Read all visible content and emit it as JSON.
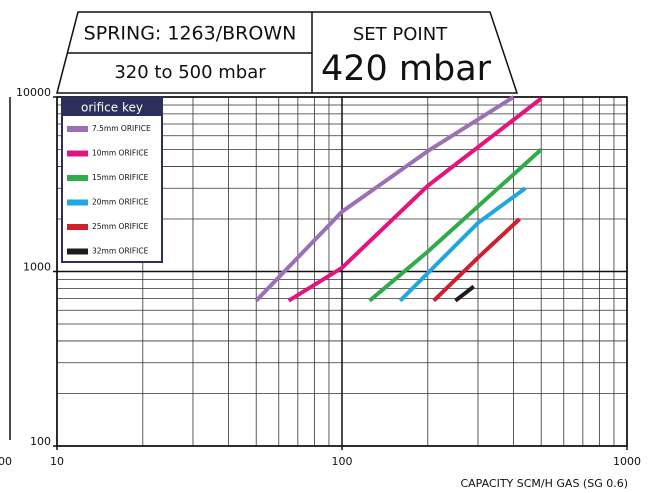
{
  "chart_data": {
    "type": "line",
    "header": {
      "spring": "SPRING: 1263/BROWN",
      "range": "320 to 500 mbar",
      "set_point_label": "SET POINT",
      "set_point": "420 mbar"
    },
    "x_label": "CAPACITY SCM/H GAS (SG 0.6)",
    "clipped_label": "00",
    "log_x": true,
    "log_y": true,
    "grid": true,
    "xlim": [
      10,
      1000
    ],
    "xticks": [
      10,
      100,
      1000
    ],
    "ylim": [
      100,
      10000
    ],
    "yticks": [
      100,
      1000,
      10000
    ],
    "legend_title": "orifice key",
    "legend_position": "upper left",
    "series": [
      {
        "name": "7.5mm ORIFICE",
        "color": "#9b71b3",
        "x": [
          50,
          100,
          200,
          400
        ],
        "values": [
          680,
          2200,
          4900,
          10000
        ]
      },
      {
        "name": "10mm ORIFICE",
        "color": "#e3147e",
        "x": [
          65,
          100,
          200,
          500
        ],
        "values": [
          680,
          1050,
          3100,
          9800
        ]
      },
      {
        "name": "15mm ORIFICE",
        "color": "#2fab48",
        "x": [
          125,
          200,
          500
        ],
        "values": [
          680,
          1300,
          5000
        ]
      },
      {
        "name": "20mm ORIFICE",
        "color": "#1ea7e1",
        "x": [
          160,
          300,
          440
        ],
        "values": [
          680,
          1900,
          3000
        ]
      },
      {
        "name": "25mm ORIFICE",
        "color": "#cf1f2a",
        "x": [
          210,
          300,
          420
        ],
        "values": [
          680,
          1200,
          2000
        ]
      },
      {
        "name": "32mm ORIFICE",
        "color": "#1c1c1c",
        "x": [
          250,
          290
        ],
        "values": [
          680,
          820
        ]
      }
    ]
  }
}
